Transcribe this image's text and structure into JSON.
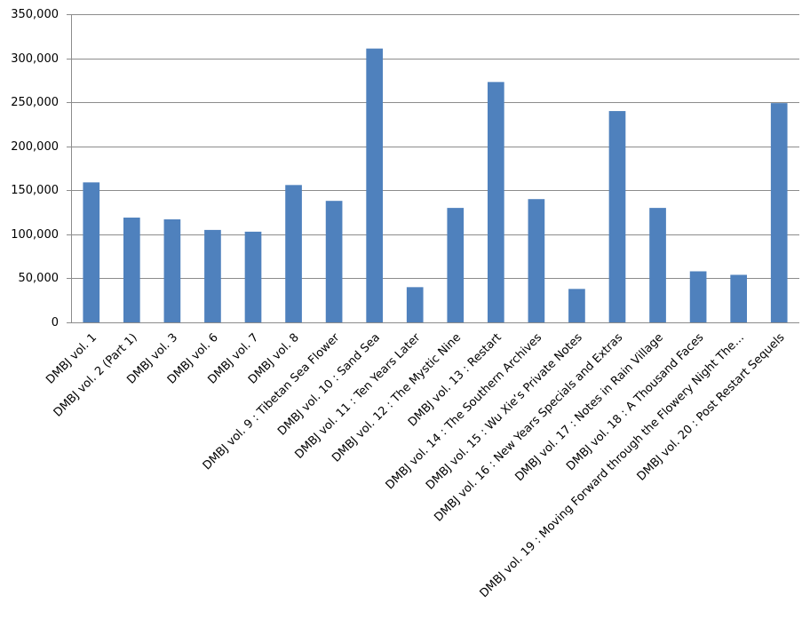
{
  "chart_data": {
    "type": "bar",
    "categories": [
      "DMBJ vol. 1",
      "DMBJ vol. 2 (Part 1)",
      "DMBJ vol. 3",
      "DMBJ vol. 6",
      "DMBJ vol. 7",
      "DMBJ vol. 8",
      "DMBJ vol. 9 : Tibetan Sea Flower",
      "DMBJ vol. 10 : Sand Sea",
      "DMBJ vol. 11 : Ten Years Later",
      "DMBJ vol. 12 : The Mystic Nine",
      "DMBJ vol. 13 : Restart",
      "DMBJ vol. 14 : The Southern Archives",
      "DMBJ vol. 15 : Wu Xie’s Private Notes",
      "DMBJ vol. 16 : New Years Specials and Extras",
      "DMBJ vol. 17 : Notes in Rain Village",
      "DMBJ vol. 18 : A Thousand Faces",
      "DMBJ vol. 19 : Moving Forward through the Flowery Night The…",
      "DMBJ vol. 20 : Post Restart Sequels"
    ],
    "values": [
      159000,
      119000,
      117000,
      105000,
      103000,
      156000,
      138000,
      311000,
      40000,
      130000,
      273000,
      140000,
      38000,
      240000,
      130000,
      58000,
      54000,
      249000
    ],
    "color": "#4f81bd",
    "ylim": [
      0,
      350000
    ],
    "yticks": [
      0,
      {
        "value": 50000,
        "label": "50,000"
      },
      {
        "value": 100000,
        "label": "100,000"
      },
      {
        "value": 150000,
        "label": "150,000"
      },
      {
        "value": 200000,
        "label": "200,000"
      },
      {
        "value": 250000,
        "label": "250,000"
      },
      {
        "value": 300000,
        "label": "300,000"
      },
      {
        "value": 350000,
        "label": "350,000"
      }
    ],
    "grid": true
  }
}
